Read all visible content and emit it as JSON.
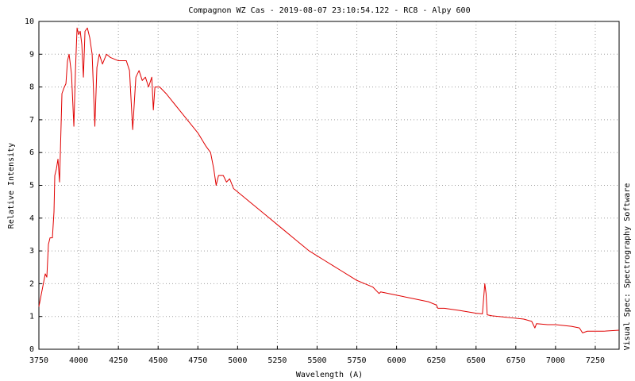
{
  "chart_data": {
    "type": "line",
    "title": "Compagnon WZ Cas - 2019-08-07 23:10:54.122 - RC8 - Alpy 600",
    "x_label": "Wavelength (A)",
    "y_label": "Relative Intensity",
    "side_note": "Visual Spec: Spectrography Software",
    "color": "#e00000",
    "x": [
      3750,
      3770,
      3790,
      3800,
      3810,
      3820,
      3835,
      3845,
      3850,
      3860,
      3870,
      3880,
      3885,
      3895,
      3910,
      3920,
      3930,
      3940,
      3955,
      3970,
      3980,
      3990,
      4000,
      4010,
      4020,
      4030,
      4040,
      4055,
      4070,
      4085,
      4102,
      4115,
      4130,
      4150,
      4175,
      4200,
      4250,
      4300,
      4320,
      4340,
      4360,
      4380,
      4400,
      4420,
      4440,
      4460,
      4470,
      4480,
      4510,
      4550,
      4600,
      4650,
      4700,
      4750,
      4800,
      4830,
      4850,
      4865,
      4880,
      4910,
      4930,
      4950,
      4975,
      5000,
      5050,
      5100,
      5150,
      5200,
      5250,
      5300,
      5350,
      5400,
      5450,
      5500,
      5550,
      5600,
      5650,
      5700,
      5750,
      5800,
      5850,
      5890,
      5900,
      6000,
      6100,
      6200,
      6250,
      6260,
      6300,
      6400,
      6500,
      6540,
      6555,
      6563,
      6570,
      6600,
      6700,
      6800,
      6850,
      6870,
      6880,
      6950,
      7000,
      7100,
      7150,
      7170,
      7200,
      7250,
      7300,
      7400
    ],
    "values": [
      1.3,
      1.8,
      2.3,
      2.2,
      3.2,
      3.4,
      3.4,
      4.2,
      5.3,
      5.5,
      5.8,
      5.1,
      6.0,
      7.8,
      8.0,
      8.1,
      8.8,
      9.0,
      8.4,
      6.8,
      8.5,
      9.8,
      9.6,
      9.7,
      9.3,
      8.3,
      9.7,
      9.8,
      9.5,
      9.0,
      6.8,
      8.6,
      9.0,
      8.7,
      9.0,
      8.9,
      8.8,
      8.8,
      8.5,
      6.7,
      8.3,
      8.5,
      8.2,
      8.3,
      8.0,
      8.3,
      7.3,
      8.0,
      8.0,
      7.8,
      7.5,
      7.2,
      6.9,
      6.6,
      6.2,
      6.0,
      5.5,
      5.0,
      5.3,
      5.3,
      5.1,
      5.2,
      4.9,
      4.8,
      4.6,
      4.4,
      4.2,
      4.0,
      3.8,
      3.6,
      3.4,
      3.2,
      3.0,
      2.85,
      2.7,
      2.55,
      2.4,
      2.25,
      2.1,
      2.0,
      1.9,
      1.7,
      1.75,
      1.65,
      1.55,
      1.45,
      1.35,
      1.25,
      1.25,
      1.18,
      1.1,
      1.08,
      2.0,
      1.7,
      1.05,
      1.02,
      0.97,
      0.92,
      0.85,
      0.65,
      0.78,
      0.75,
      0.75,
      0.7,
      0.65,
      0.5,
      0.55,
      0.55,
      0.55,
      0.58
    ],
    "xlim": [
      3750,
      7400
    ],
    "ylim": [
      0,
      10
    ],
    "xticks": [
      3750,
      4000,
      4250,
      4500,
      4750,
      5000,
      5250,
      5500,
      5750,
      6000,
      6250,
      6500,
      6750,
      7000,
      7250
    ],
    "yticks": [
      0,
      1,
      2,
      3,
      4,
      5,
      6,
      7,
      8,
      9,
      10
    ],
    "grid": true
  }
}
